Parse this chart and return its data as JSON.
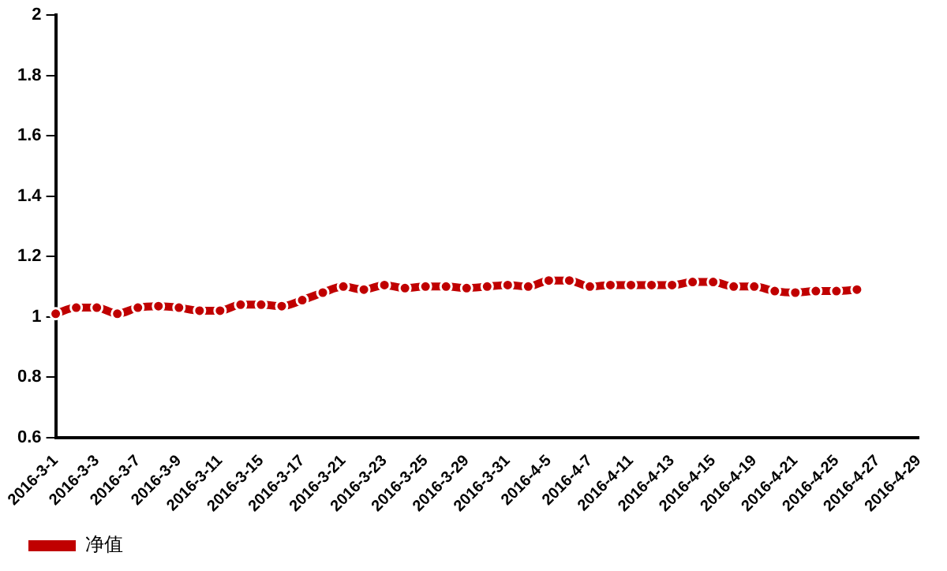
{
  "chart_data": {
    "type": "line",
    "categories": [
      "2016-3-1",
      null,
      "2016-3-3",
      null,
      "2016-3-7",
      null,
      "2016-3-9",
      null,
      "2016-3-11",
      null,
      "2016-3-15",
      null,
      "2016-3-17",
      null,
      "2016-3-21",
      null,
      "2016-3-23",
      null,
      "2016-3-25",
      null,
      "2016-3-29",
      null,
      "2016-3-31",
      null,
      "2016-4-5",
      null,
      "2016-4-7",
      null,
      "2016-4-11",
      null,
      "2016-4-13",
      null,
      "2016-4-15",
      null,
      "2016-4-19",
      null,
      "2016-4-21",
      null,
      "2016-4-25",
      null,
      "2016-4-27",
      null,
      "2016-4-29"
    ],
    "series": [
      {
        "name": "净值",
        "color": "#c00000",
        "values": [
          1.01,
          1.03,
          1.03,
          1.01,
          1.03,
          1.035,
          1.03,
          1.02,
          1.02,
          1.04,
          1.04,
          1.035,
          1.055,
          1.08,
          1.1,
          1.09,
          1.105,
          1.095,
          1.1,
          1.1,
          1.095,
          1.1,
          1.105,
          1.1,
          1.12,
          1.12,
          1.1,
          1.105,
          1.105,
          1.105,
          1.105,
          1.115,
          1.115,
          1.1,
          1.1,
          1.085,
          1.08,
          1.085,
          1.085,
          1.09,
          null,
          null,
          null
        ]
      }
    ],
    "ylim": [
      0.6,
      2
    ],
    "yticks": [
      0.6,
      0.8,
      1,
      1.2,
      1.4,
      1.6,
      1.8,
      2
    ],
    "grid": false,
    "legend": "bottom left",
    "marker": "circle",
    "line_style": "solid"
  }
}
